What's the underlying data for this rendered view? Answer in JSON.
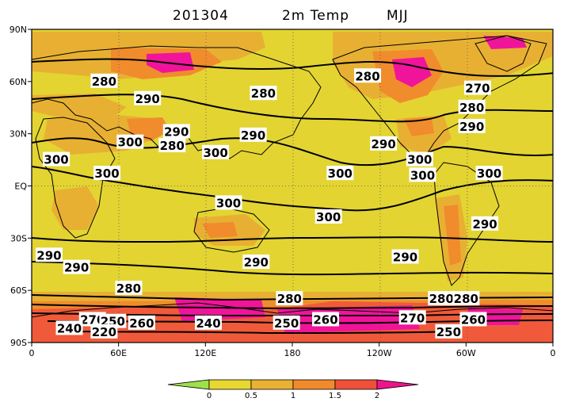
{
  "title": {
    "date": "201304",
    "variable": "2m Temp",
    "season": "MJJ"
  },
  "lat_axis": [
    "90N",
    "60N",
    "30N",
    "EQ",
    "30S",
    "60S",
    "90S"
  ],
  "lon_axis": [
    "0",
    "60E",
    "120E",
    "180",
    "120W",
    "60W",
    "0"
  ],
  "colorbar": {
    "labels": [
      "0",
      "0.5",
      "1",
      "1.5",
      "2"
    ],
    "colors": [
      "#9ee04a",
      "#e8d830",
      "#e9b233",
      "#f08a2c",
      "#f0503a",
      "#f0148c"
    ]
  },
  "field_colors": {
    "background": "#e3d432",
    "light_orange": "#e8b032",
    "orange": "#f08c2c",
    "red": "#f05a3a",
    "magenta": "#f0149a"
  },
  "contour_labels": [
    {
      "text": "280",
      "lon": 50,
      "lat": 60
    },
    {
      "text": "290",
      "lon": 80,
      "lat": 50
    },
    {
      "text": "280",
      "lon": 160,
      "lat": 53
    },
    {
      "text": "280",
      "lon": 232,
      "lat": 63
    },
    {
      "text": "270",
      "lon": 308,
      "lat": 56
    },
    {
      "text": "280",
      "lon": 304,
      "lat": 45
    },
    {
      "text": "290",
      "lon": 304,
      "lat": 34
    },
    {
      "text": "290",
      "lon": 100,
      "lat": 31
    },
    {
      "text": "290",
      "lon": 153,
      "lat": 29
    },
    {
      "text": "300",
      "lon": 68,
      "lat": 25
    },
    {
      "text": "280",
      "lon": 97,
      "lat": 23
    },
    {
      "text": "290",
      "lon": 243,
      "lat": 24
    },
    {
      "text": "300",
      "lon": 17,
      "lat": 15
    },
    {
      "text": "300",
      "lon": 127,
      "lat": 19
    },
    {
      "text": "300",
      "lon": 268,
      "lat": 15
    },
    {
      "text": "300",
      "lon": 52,
      "lat": 7
    },
    {
      "text": "300",
      "lon": 213,
      "lat": 7
    },
    {
      "text": "300",
      "lon": 270,
      "lat": 6
    },
    {
      "text": "300",
      "lon": 316,
      "lat": 7
    },
    {
      "text": "300",
      "lon": 136,
      "lat": -10
    },
    {
      "text": "300",
      "lon": 205,
      "lat": -18
    },
    {
      "text": "290",
      "lon": 313,
      "lat": -22
    },
    {
      "text": "290",
      "lon": 12,
      "lat": -40
    },
    {
      "text": "290",
      "lon": 31,
      "lat": -47
    },
    {
      "text": "290",
      "lon": 155,
      "lat": -44
    },
    {
      "text": "290",
      "lon": 258,
      "lat": -41
    },
    {
      "text": "280",
      "lon": 67,
      "lat": -59
    },
    {
      "text": "280",
      "lon": 178,
      "lat": -65
    },
    {
      "text": "280",
      "lon": 283,
      "lat": -65
    },
    {
      "text": "280",
      "lon": 300,
      "lat": -65
    },
    {
      "text": "270",
      "lon": 42,
      "lat": -77
    },
    {
      "text": "250",
      "lon": 56,
      "lat": -78
    },
    {
      "text": "260",
      "lon": 76,
      "lat": -79
    },
    {
      "text": "240",
      "lon": 26,
      "lat": -82
    },
    {
      "text": "220",
      "lon": 50,
      "lat": -84
    },
    {
      "text": "240",
      "lon": 122,
      "lat": -79
    },
    {
      "text": "250",
      "lon": 176,
      "lat": -79
    },
    {
      "text": "260",
      "lon": 203,
      "lat": -77
    },
    {
      "text": "270",
      "lon": 263,
      "lat": -76
    },
    {
      "text": "260",
      "lon": 305,
      "lat": -77
    },
    {
      "text": "250",
      "lon": 288,
      "lat": -84
    }
  ]
}
